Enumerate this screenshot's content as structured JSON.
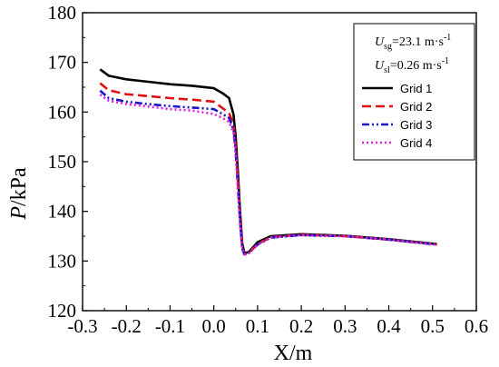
{
  "chart_data": {
    "type": "line",
    "title": "",
    "xlabel": "X/m",
    "ylabel_var": "P",
    "ylabel_unit": "/kPa",
    "xlim": [
      -0.3,
      0.6
    ],
    "ylim": [
      120,
      180
    ],
    "xticks": [
      "-0.3",
      "-0.2",
      "-0.1",
      "0.0",
      "0.1",
      "0.2",
      "0.3",
      "0.4",
      "0.5",
      "0.6"
    ],
    "yticks": [
      "120",
      "130",
      "140",
      "150",
      "160",
      "170",
      "180"
    ],
    "annotations": {
      "usg": {
        "var": "U",
        "sub": "sg",
        "text": "=23.1 m·s",
        "sup": "-1"
      },
      "usl": {
        "var": "U",
        "sub": "sl",
        "text": "=0.26 m·s",
        "sup": "-1"
      }
    },
    "legend_position": "top-right",
    "series": [
      {
        "name": "Grid 1",
        "color": "#000000",
        "dash": "solid",
        "points": [
          [
            -0.26,
            168.6
          ],
          [
            -0.24,
            167.3
          ],
          [
            -0.2,
            166.6
          ],
          [
            -0.15,
            166.1
          ],
          [
            -0.1,
            165.6
          ],
          [
            -0.05,
            165.3
          ],
          [
            0.0,
            164.8
          ],
          [
            0.02,
            163.8
          ],
          [
            0.035,
            162.8
          ],
          [
            0.045,
            159.5
          ],
          [
            0.05,
            155.0
          ],
          [
            0.055,
            148.0
          ],
          [
            0.06,
            140.0
          ],
          [
            0.065,
            133.5
          ],
          [
            0.07,
            131.6
          ],
          [
            0.08,
            131.8
          ],
          [
            0.1,
            133.8
          ],
          [
            0.13,
            135.0
          ],
          [
            0.2,
            135.4
          ],
          [
            0.3,
            135.1
          ],
          [
            0.4,
            134.4
          ],
          [
            0.51,
            133.4
          ]
        ]
      },
      {
        "name": "Grid 2",
        "color": "#e01010",
        "dash": "long-dash",
        "points": [
          [
            -0.26,
            165.8
          ],
          [
            -0.24,
            164.4
          ],
          [
            -0.2,
            163.6
          ],
          [
            -0.15,
            163.2
          ],
          [
            -0.1,
            162.8
          ],
          [
            -0.05,
            162.5
          ],
          [
            0.0,
            162.1
          ],
          [
            0.02,
            160.8
          ],
          [
            0.035,
            159.8
          ],
          [
            0.045,
            157.5
          ],
          [
            0.05,
            153.0
          ],
          [
            0.055,
            146.0
          ],
          [
            0.06,
            138.5
          ],
          [
            0.065,
            132.8
          ],
          [
            0.07,
            131.3
          ],
          [
            0.08,
            131.6
          ],
          [
            0.1,
            133.4
          ],
          [
            0.13,
            134.8
          ],
          [
            0.2,
            135.3
          ],
          [
            0.3,
            135.0
          ],
          [
            0.4,
            134.3
          ],
          [
            0.51,
            133.3
          ]
        ]
      },
      {
        "name": "Grid 3",
        "color": "#1a16c8",
        "dash": "dash-dot-dot",
        "points": [
          [
            -0.26,
            164.3
          ],
          [
            -0.24,
            162.8
          ],
          [
            -0.2,
            162.1
          ],
          [
            -0.15,
            161.6
          ],
          [
            -0.1,
            161.2
          ],
          [
            -0.05,
            160.9
          ],
          [
            0.0,
            160.6
          ],
          [
            0.02,
            159.6
          ],
          [
            0.035,
            158.8
          ],
          [
            0.045,
            156.5
          ],
          [
            0.05,
            152.0
          ],
          [
            0.055,
            145.0
          ],
          [
            0.06,
            138.0
          ],
          [
            0.065,
            132.5
          ],
          [
            0.07,
            131.3
          ],
          [
            0.08,
            131.6
          ],
          [
            0.1,
            133.3
          ],
          [
            0.13,
            134.7
          ],
          [
            0.2,
            135.2
          ],
          [
            0.3,
            135.0
          ],
          [
            0.4,
            134.3
          ],
          [
            0.51,
            133.3
          ]
        ]
      },
      {
        "name": "Grid 4",
        "color": "#e020e0",
        "dash": "dot",
        "points": [
          [
            -0.26,
            163.5
          ],
          [
            -0.24,
            162.3
          ],
          [
            -0.2,
            161.6
          ],
          [
            -0.15,
            161.1
          ],
          [
            -0.1,
            160.6
          ],
          [
            -0.05,
            160.3
          ],
          [
            0.0,
            159.6
          ],
          [
            0.02,
            158.8
          ],
          [
            0.035,
            158.0
          ],
          [
            0.045,
            155.8
          ],
          [
            0.05,
            151.5
          ],
          [
            0.055,
            144.5
          ],
          [
            0.06,
            137.5
          ],
          [
            0.065,
            132.3
          ],
          [
            0.07,
            131.3
          ],
          [
            0.08,
            131.6
          ],
          [
            0.1,
            133.3
          ],
          [
            0.13,
            134.7
          ],
          [
            0.2,
            135.2
          ],
          [
            0.3,
            135.0
          ],
          [
            0.4,
            134.3
          ],
          [
            0.51,
            133.3
          ]
        ]
      }
    ]
  }
}
